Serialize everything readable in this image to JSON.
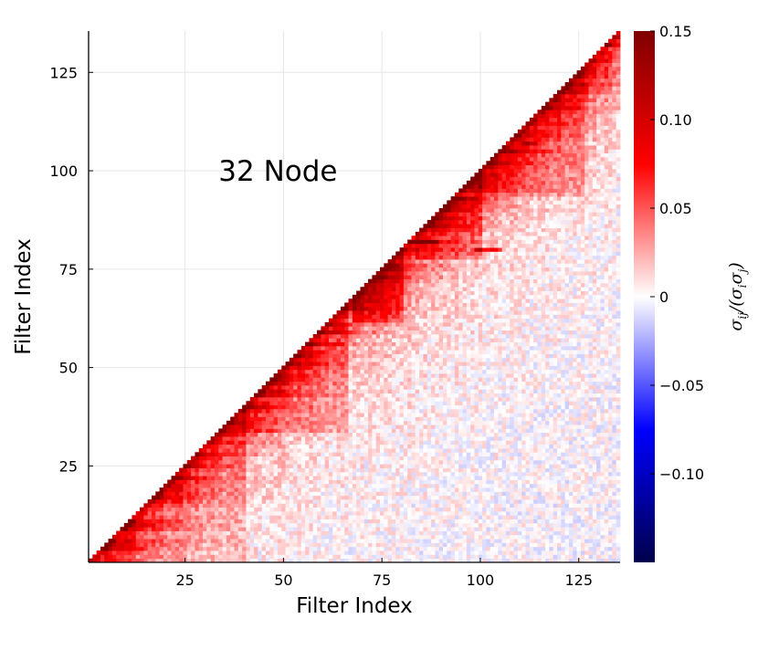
{
  "chart_data": {
    "type": "heatmap",
    "shape": "lower-right triangle (j >= i)",
    "xlabel": "Filter Index",
    "ylabel": "Filter Index",
    "annotation": "32 Node",
    "xlim": [
      0.5,
      135.5
    ],
    "ylim": [
      0.5,
      135.5
    ],
    "n": 135,
    "xticks": [
      25,
      50,
      75,
      100,
      125
    ],
    "xtick_labels": [
      "25",
      "50",
      "75",
      "100",
      "125"
    ],
    "yticks": [
      25,
      50,
      75,
      100,
      125
    ],
    "ytick_labels": [
      "25",
      "50",
      "75",
      "100",
      "125"
    ],
    "colorbar": {
      "label": "σij/(σiσj)",
      "label_main": "σ",
      "label_sub1": "ij",
      "label_mid": "/(σ",
      "label_sub2": "i",
      "label_mid2": "σ",
      "label_sub3": "j",
      "label_end": ")",
      "range": [
        -0.15,
        0.15
      ],
      "colormap": "seismic",
      "colors": [
        "#00004c",
        "#0000ff",
        "#ffffff",
        "#ff0000",
        "#7f0000"
      ],
      "ticks": [
        0.15,
        0.1,
        0.05,
        0,
        -0.05,
        -0.1
      ],
      "tick_labels": [
        "0.15",
        "0.10",
        "0.05",
        "0",
        "−0.05",
        "−0.10"
      ]
    },
    "description_values": {
      "near_diagonal": "strong positive (0.06–0.12)",
      "block_structure": "blocks at indices ~70–78, ~85–100, ~100–125 with elevated correlation",
      "far_from_diagonal": "weak, mostly 0 to 0.03 with scattered slightly negative values (~−0.02)"
    },
    "grid": true
  }
}
